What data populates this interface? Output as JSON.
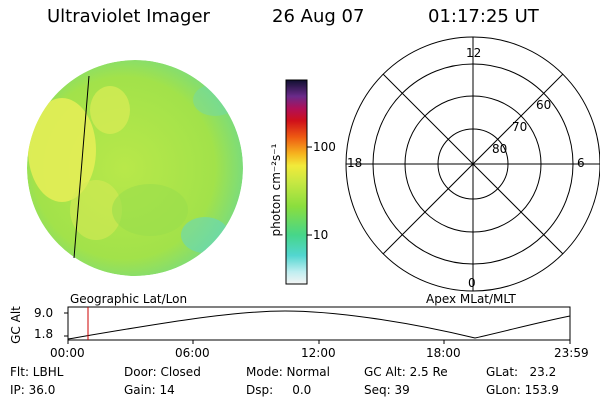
{
  "header": {
    "instrument": "Ultraviolet Imager",
    "date": "26 Aug 07",
    "time": "01:17:25 UT"
  },
  "colorbar": {
    "unit_label": "photon cm⁻²s⁻¹",
    "tick_100": "100",
    "tick_10": "10"
  },
  "polar_plot": {
    "labels": {
      "top": "12",
      "left": "18",
      "right": "6",
      "bottom": "0"
    },
    "rings": [
      "60",
      "70",
      "80"
    ]
  },
  "captions": {
    "left": "Geographic Lat/Lon",
    "right": "Apex MLat/MLT"
  },
  "alt_plot": {
    "ylabel": "GC Alt",
    "ytick_high": "9.0",
    "ytick_low": "1.8",
    "xticks": [
      "00:00",
      "06:00",
      "12:00",
      "18:00",
      "23:59"
    ]
  },
  "status": {
    "flt": "Flt: LBHL",
    "ip": "IP: 36.0",
    "door": "Door: Closed",
    "gain": "Gain: 14",
    "mode": "Mode: Normal",
    "dsp": "Dsp:     0.0",
    "gc_alt": "GC Alt: 2.5 Re",
    "seq": "Seq: 39",
    "glat": "GLat:   23.2",
    "glon": "GLon: 153.9"
  },
  "colors": {
    "image_base": "#a6e34a",
    "image_bright": "#e8ee55",
    "image_edge": "#5fd6c9",
    "time_marker": "#cc0000"
  }
}
